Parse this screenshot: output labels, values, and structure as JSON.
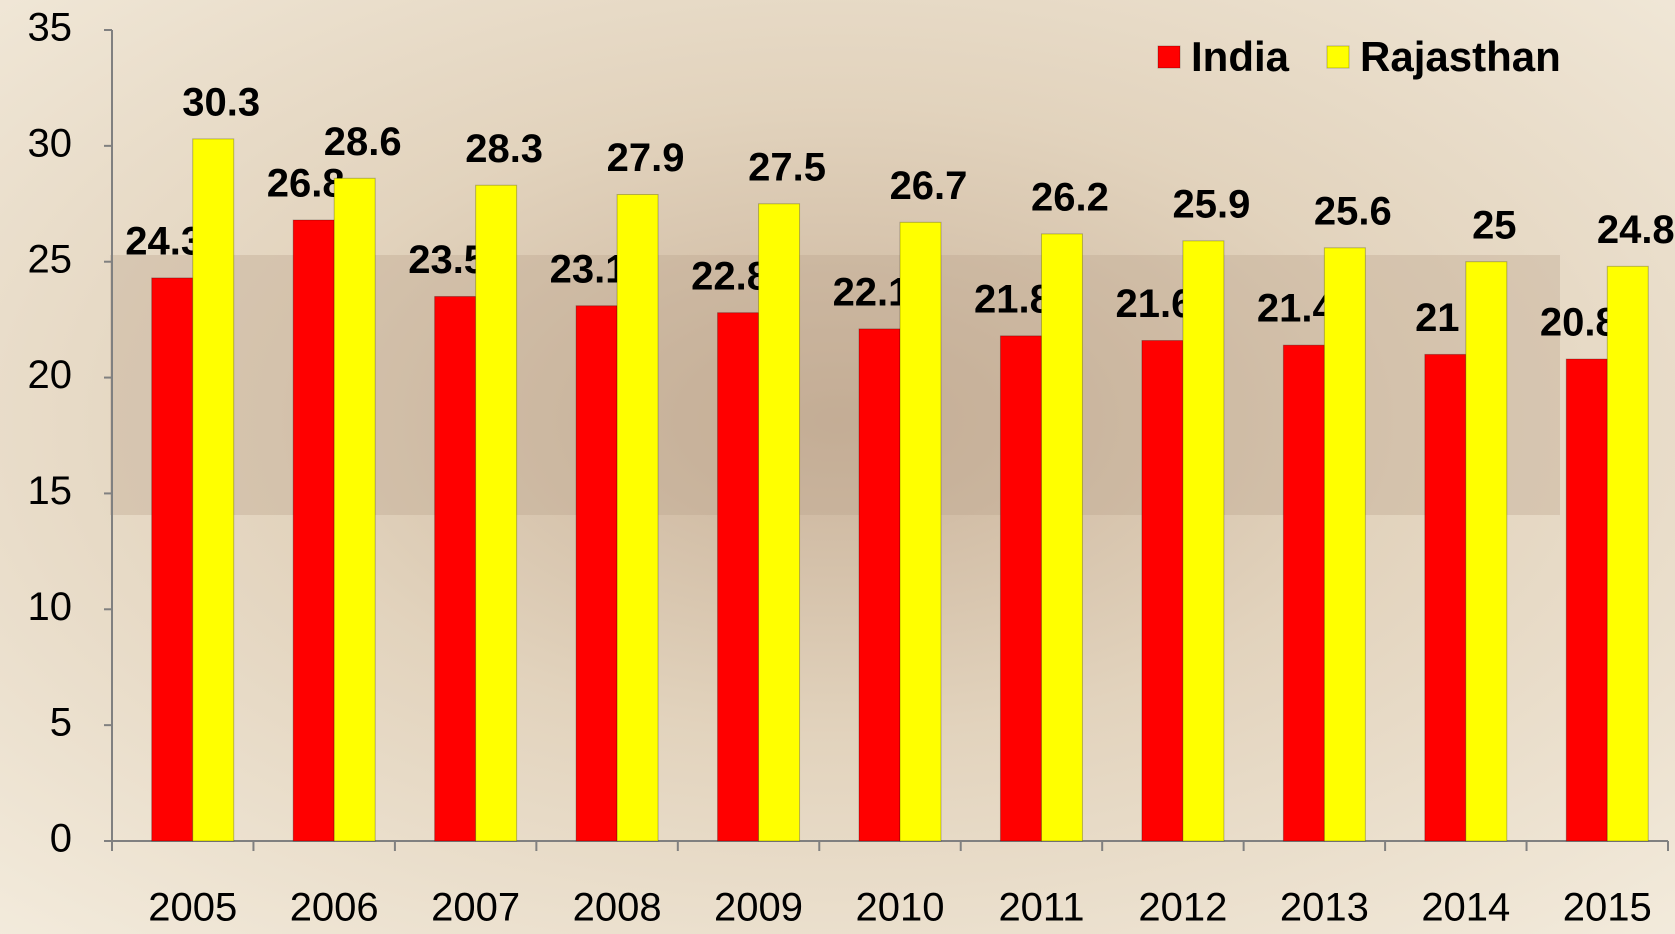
{
  "chart_data": {
    "type": "bar",
    "categories": [
      "2005",
      "2006",
      "2007",
      "2008",
      "2009",
      "2010",
      "2011",
      "2012",
      "2013",
      "2014",
      "2015"
    ],
    "series": [
      {
        "name": "India",
        "color": "#ff0000",
        "values": [
          24.3,
          26.8,
          23.5,
          23.1,
          22.8,
          22.1,
          21.8,
          21.6,
          21.4,
          21,
          20.8
        ]
      },
      {
        "name": "Rajasthan",
        "color": "#ffff00",
        "values": [
          30.3,
          28.6,
          28.3,
          27.9,
          27.5,
          26.7,
          26.2,
          25.9,
          25.6,
          25,
          24.8
        ]
      }
    ],
    "ylim": [
      0,
      35
    ],
    "yticks": [
      0,
      5,
      10,
      15,
      20,
      25,
      30,
      35
    ],
    "legend": "top-right"
  }
}
